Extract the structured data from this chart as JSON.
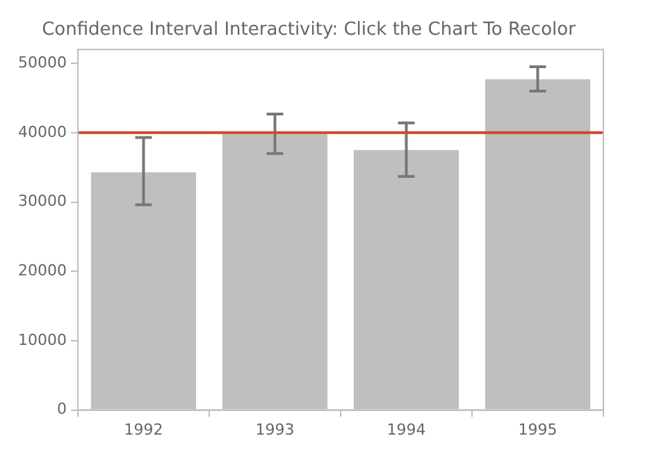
{
  "chart_data": {
    "type": "bar",
    "title": "Confidence Interval Interactivity: Click the Chart To Recolor",
    "categories": [
      "1992",
      "1993",
      "1994",
      "1995"
    ],
    "values": [
      34300,
      39800,
      37500,
      47700
    ],
    "color": "#bfbfbf",
    "errors": [
      [
        29600,
        39300
      ],
      [
        37000,
        42700
      ],
      [
        33700,
        41400
      ],
      [
        46000,
        49500
      ]
    ],
    "ylim": [
      0,
      52000
    ],
    "yticks": [
      0,
      10000,
      20000,
      30000,
      40000,
      50000
    ],
    "ref_lines": [
      {
        "axis": "y",
        "value": 40000,
        "color": "#d2462e"
      }
    ],
    "grid": false,
    "legend": false
  }
}
